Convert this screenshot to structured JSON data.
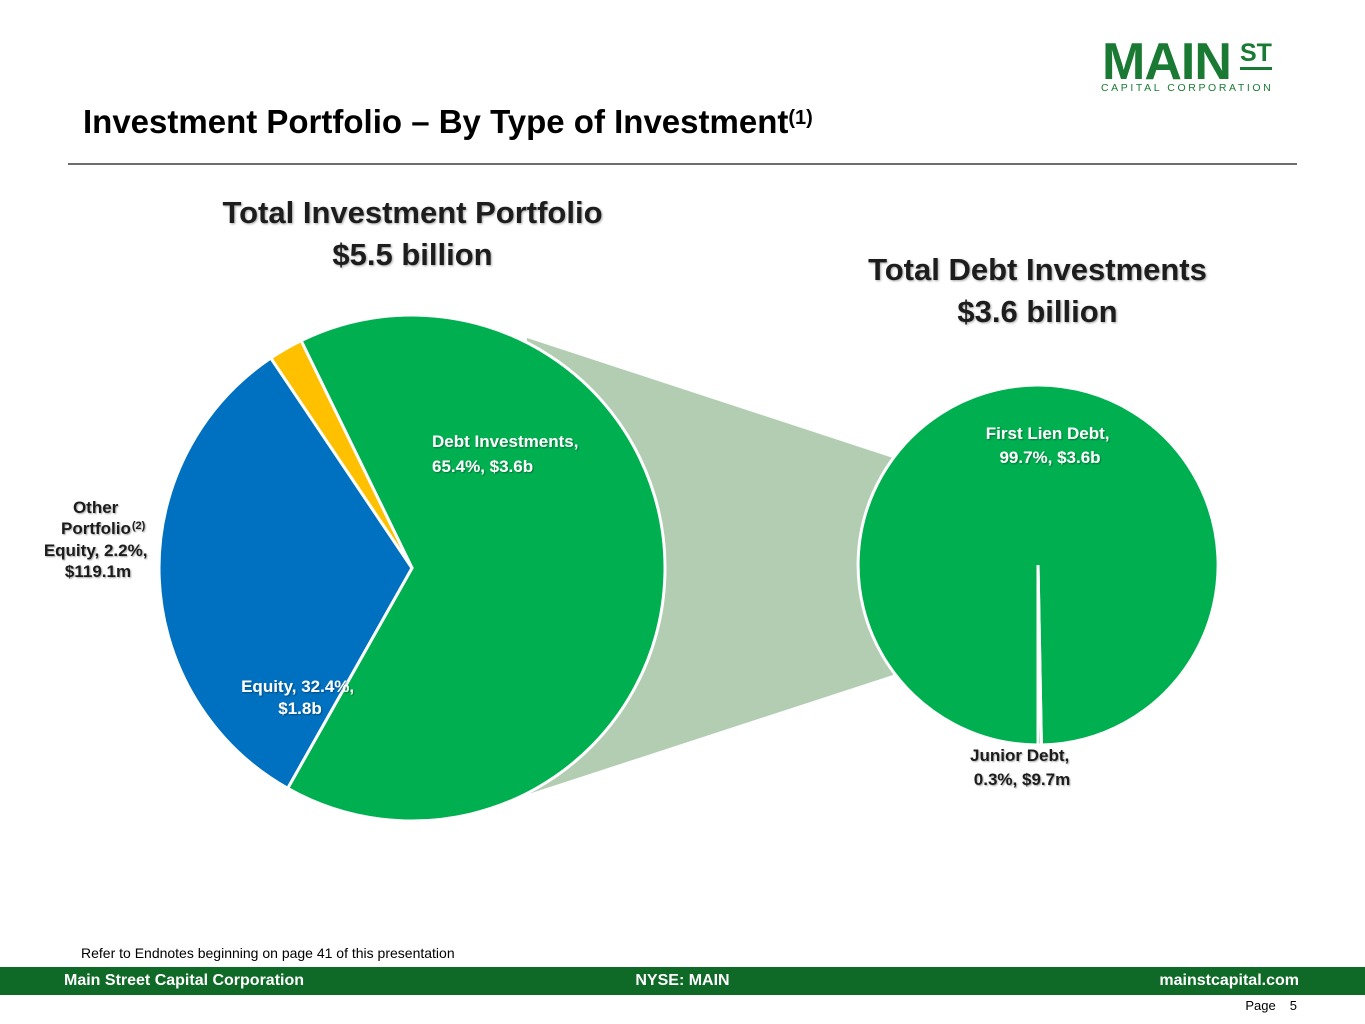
{
  "header": {
    "title": "Investment Portfolio – By Type of Investment",
    "title_superscript": "(1)"
  },
  "logo": {
    "main": "MAIN",
    "superscript": "ST",
    "subtitle": "CAPITAL CORPORATION",
    "color": "#1a7a34"
  },
  "chart_data": [
    {
      "type": "pie",
      "title": "Total Investment Portfolio",
      "subtitle": "$5.5 billion",
      "slices": [
        {
          "key": "debt",
          "name": "Debt Investments",
          "percent": 65.4,
          "value": "$3.6b",
          "label_lines": [
            "Debt Investments,",
            "65.4%, $3.6b"
          ],
          "color": "#00b050"
        },
        {
          "key": "equity",
          "name": "Equity",
          "percent": 32.4,
          "value": "$1.8b",
          "label_lines": [
            "Equity, 32.4%,",
            "$1.8b"
          ],
          "color": "#0070c0"
        },
        {
          "key": "other",
          "name": "Other Portfolio Equity",
          "percent": 2.2,
          "value": "$119.1m",
          "label_lines": [
            "Other",
            "Portfolio",
            "Equity, 2.2%,",
            "$119.1m"
          ],
          "label_footnote": "(2)",
          "color": "#ffc000"
        }
      ]
    },
    {
      "type": "pie",
      "title": "Total Debt Investments",
      "subtitle": "$3.6 billion",
      "slices": [
        {
          "key": "first_lien",
          "name": "First Lien Debt",
          "percent": 99.7,
          "value": "$3.6b",
          "label_lines": [
            "First Lien Debt,",
            "99.7%, $3.6b"
          ],
          "color": "#00b050"
        },
        {
          "key": "junior",
          "name": "Junior Debt",
          "percent": 0.3,
          "value": "$9.7m",
          "label_lines": [
            "Junior Debt,",
            "0.3%, $9.7m"
          ],
          "color": "#00b050"
        }
      ]
    }
  ],
  "connector_color": "#b3cdb3",
  "endnote": "Refer to Endnotes beginning on page 41 of this presentation",
  "footer": {
    "company": "Main Street Capital Corporation",
    "ticker": "NYSE: MAIN",
    "website": "mainstcapital.com",
    "bar_color": "#0f6a27"
  },
  "page": {
    "label": "Page",
    "number": "5"
  }
}
